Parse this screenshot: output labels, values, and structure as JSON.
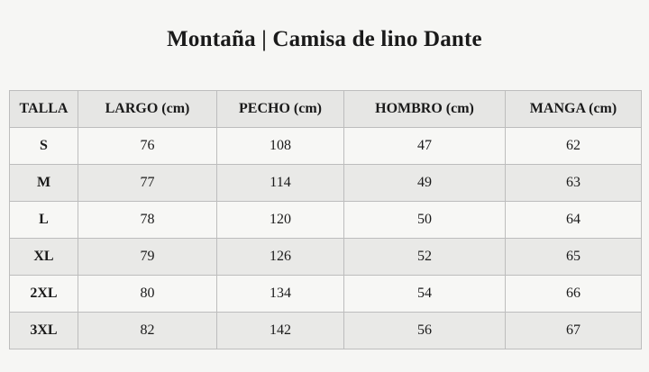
{
  "title": "Montaña | Camisa de lino Dante",
  "table": {
    "headers": [
      "TALLA",
      "LARGO (cm)",
      "PECHO (cm)",
      "HOMBRO (cm)",
      "MANGA (cm)"
    ],
    "rows": [
      [
        "S",
        "76",
        "108",
        "47",
        "62"
      ],
      [
        "M",
        "77",
        "114",
        "49",
        "63"
      ],
      [
        "L",
        "78",
        "120",
        "50",
        "64"
      ],
      [
        "XL",
        "79",
        "126",
        "52",
        "65"
      ],
      [
        "2XL",
        "80",
        "134",
        "54",
        "66"
      ],
      [
        "3XL",
        "82",
        "142",
        "56",
        "67"
      ]
    ]
  },
  "colors": {
    "background": "#f6f6f4",
    "header_bg": "#e6e6e4",
    "row_light": "#f7f7f5",
    "row_dark": "#e9e9e7",
    "border": "#bdbdbd"
  }
}
